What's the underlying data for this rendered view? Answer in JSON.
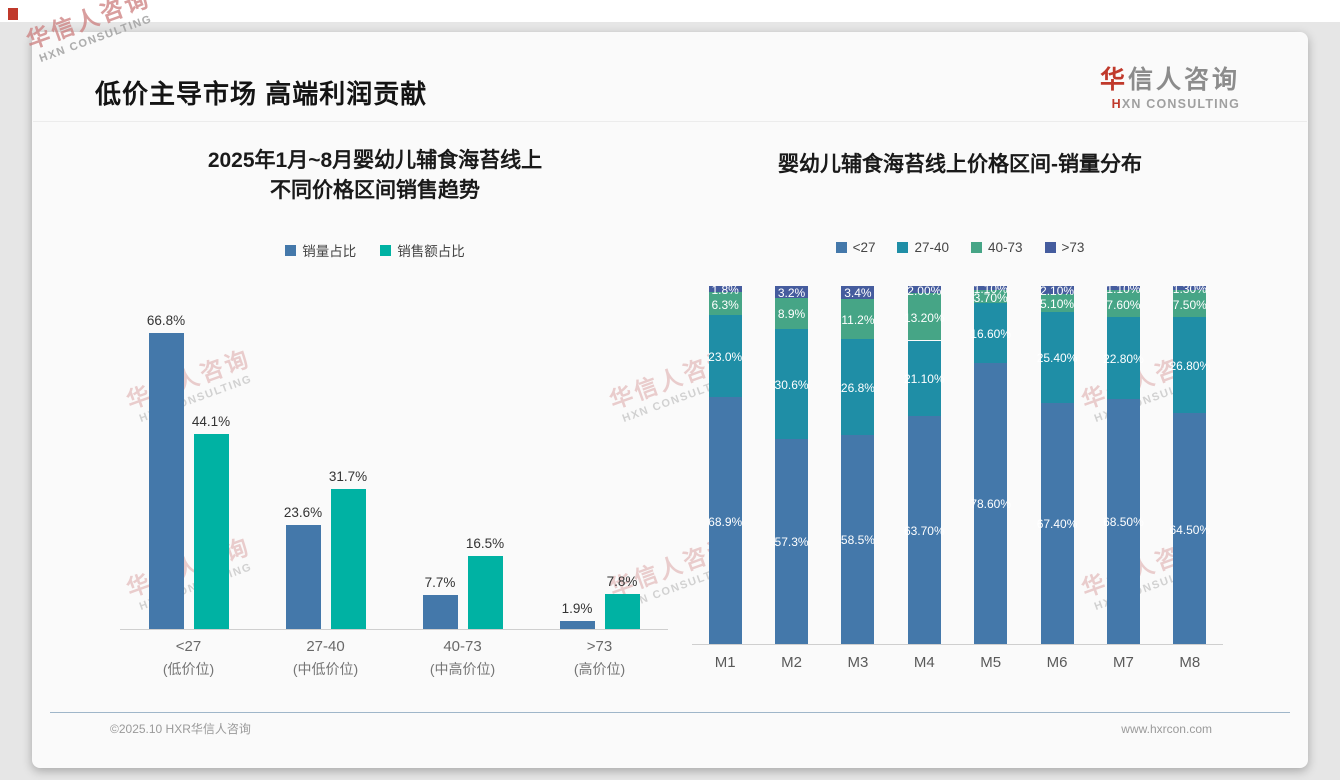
{
  "header": {
    "title": "低价主导市场 高端利润贡献",
    "logo": {
      "cn_first": "华",
      "cn_rest": "信人咨询",
      "en_first": "H",
      "en_rest": "XN CONSULTING"
    }
  },
  "watermark": {
    "line1": "华信人咨询",
    "line2": "HXN CONSULTING"
  },
  "charts": {
    "left": {
      "title_line1": "2025年1月~8月婴幼儿辅食海苔线上",
      "title_line2": "不同价格区间销售趋势",
      "chart_data": {
        "type": "bar",
        "categories": [
          "<27",
          "27-40",
          "40-73",
          ">73"
        ],
        "category_sublabels": [
          "(低价位)",
          "(中低价位)",
          "(中高价位)",
          "(高价位)"
        ],
        "series": [
          {
            "name": "销量占比",
            "color": "#4478aa",
            "values": [
              66.8,
              23.6,
              7.7,
              1.9
            ],
            "labels": [
              "66.8%",
              "23.6%",
              "7.7%",
              "1.9%"
            ]
          },
          {
            "name": "销售额占比",
            "color": "#00b2a3",
            "values": [
              44.1,
              31.7,
              16.5,
              7.8
            ],
            "labels": [
              "44.1%",
              "31.7%",
              "16.5%",
              "7.8%"
            ]
          }
        ],
        "ylim": [
          0,
          70
        ],
        "grid": false,
        "legend_position": "top",
        "xlabel": "",
        "ylabel": ""
      }
    },
    "right": {
      "title": "婴幼儿辅食海苔线上价格区间-销量分布",
      "chart_data": {
        "type": "bar",
        "stacked": true,
        "categories": [
          "M1",
          "M2",
          "M3",
          "M4",
          "M5",
          "M6",
          "M7",
          "M8"
        ],
        "series": [
          {
            "name": "<27",
            "color": "#4478aa",
            "values": [
              68.9,
              57.3,
              58.5,
              63.7,
              78.6,
              67.4,
              68.5,
              64.5
            ],
            "labels": [
              "68.9%",
              "57.3%",
              "58.5%",
              "63.70%",
              "78.60%",
              "67.40%",
              "68.50%",
              "64.50%"
            ]
          },
          {
            "name": "27-40",
            "color": "#1f8ea6",
            "values": [
              23.0,
              30.6,
              26.8,
              21.1,
              16.6,
              25.4,
              22.8,
              26.8
            ],
            "labels": [
              "23.0%",
              "30.6%",
              "26.8%",
              "21.10%",
              "16.60%",
              "25.40%",
              "22.80%",
              "26.80%"
            ]
          },
          {
            "name": "40-73",
            "color": "#46a586",
            "values": [
              6.3,
              8.9,
              11.2,
              13.2,
              3.7,
              5.1,
              7.6,
              7.5
            ],
            "labels": [
              "6.3%",
              "8.9%",
              "11.2%",
              "13.20%",
              "3.70%",
              "5.10%",
              "7.60%",
              "7.50%"
            ]
          },
          {
            "name": ">73",
            "color": "#455c9e",
            "values": [
              1.8,
              3.2,
              3.4,
              2.0,
              1.1,
              2.1,
              1.1,
              1.3
            ],
            "labels": [
              "1.8%",
              "3.2%",
              "3.4%",
              "2.00%",
              "1.10%",
              "2.10%",
              "1.10%",
              "1.30%"
            ]
          }
        ],
        "ylim": [
          0,
          100
        ],
        "grid": false,
        "legend_position": "top",
        "xlabel": "",
        "ylabel": ""
      }
    }
  },
  "footer": {
    "copyright": "©2025.10 HXR华信人咨询",
    "website": "www.hxrcon.com"
  }
}
